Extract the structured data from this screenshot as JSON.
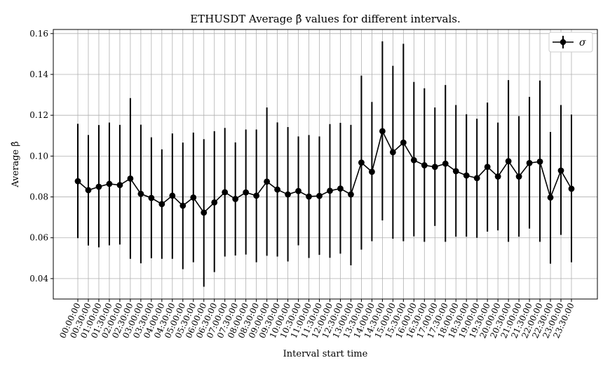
{
  "chart_data": {
    "type": "line",
    "title": "ETHUSDT Average β̂ values for different intervals.",
    "xlabel": "Interval start time",
    "ylabel": "Average β̂",
    "ylim": [
      0.03,
      0.162
    ],
    "yticks": [
      "0.04",
      "0.06",
      "0.08",
      "0.10",
      "0.12",
      "0.14",
      "0.16"
    ],
    "grid": true,
    "legend": {
      "placement": "top-right",
      "entries": [
        "σ"
      ]
    },
    "x": [
      "00:00:00",
      "00:30:00",
      "01:00:00",
      "01:30:00",
      "02:00:00",
      "02:30:00",
      "03:00:00",
      "03:30:00",
      "04:00:00",
      "04:30:00",
      "05:00:00",
      "05:30:00",
      "06:00:00",
      "06:30:00",
      "07:00:00",
      "07:30:00",
      "08:00:00",
      "08:30:00",
      "09:00:00",
      "09:30:00",
      "10:00:00",
      "10:30:00",
      "11:00:00",
      "11:30:00",
      "12:00:00",
      "12:30:00",
      "13:00:00",
      "13:30:00",
      "14:00:00",
      "14:30:00",
      "15:00:00",
      "15:30:00",
      "16:00:00",
      "16:30:00",
      "17:00:00",
      "17:30:00",
      "18:00:00",
      "18:30:00",
      "19:00:00",
      "19:30:00",
      "20:00:00",
      "20:30:00",
      "21:00:00",
      "21:30:00",
      "22:00:00",
      "22:30:00",
      "23:00:00",
      "23:30:00"
    ],
    "series": [
      {
        "name": "σ",
        "color": "#000000",
        "values": [
          0.0877,
          0.0833,
          0.085,
          0.0864,
          0.0858,
          0.089,
          0.0815,
          0.0795,
          0.0765,
          0.0806,
          0.0757,
          0.0797,
          0.0723,
          0.0773,
          0.0823,
          0.079,
          0.0822,
          0.0806,
          0.0875,
          0.0836,
          0.0812,
          0.0829,
          0.0802,
          0.0805,
          0.083,
          0.0841,
          0.0812,
          0.0968,
          0.0923,
          0.1122,
          0.1019,
          0.1066,
          0.098,
          0.0955,
          0.0947,
          0.0963,
          0.0926,
          0.0905,
          0.0892,
          0.0947,
          0.09,
          0.0975,
          0.09,
          0.0966,
          0.0973,
          0.0797,
          0.0929,
          0.084
        ],
        "err_low": [
          0.0598,
          0.0562,
          0.0553,
          0.0563,
          0.0567,
          0.0497,
          0.0475,
          0.05,
          0.0497,
          0.0497,
          0.0446,
          0.048,
          0.036,
          0.0432,
          0.0508,
          0.0513,
          0.0518,
          0.048,
          0.0512,
          0.0508,
          0.0484,
          0.0563,
          0.0501,
          0.0516,
          0.0502,
          0.0522,
          0.0465,
          0.0542,
          0.0583,
          0.0685,
          0.0595,
          0.0583,
          0.0607,
          0.058,
          0.0658,
          0.058,
          0.0605,
          0.0605,
          0.06,
          0.063,
          0.0636,
          0.058,
          0.0605,
          0.0645,
          0.058,
          0.0473,
          0.0614,
          0.048
        ],
        "err_high": [
          0.1158,
          0.1103,
          0.1152,
          0.1164,
          0.1153,
          0.1284,
          0.1154,
          0.1092,
          0.1033,
          0.1111,
          0.1066,
          0.1115,
          0.1083,
          0.1122,
          0.1138,
          0.1067,
          0.113,
          0.113,
          0.1238,
          0.1165,
          0.1142,
          0.1096,
          0.1103,
          0.1096,
          0.1157,
          0.1163,
          0.1153,
          0.1394,
          0.1265,
          0.1562,
          0.1442,
          0.155,
          0.1363,
          0.1332,
          0.1238,
          0.1348,
          0.125,
          0.1205,
          0.1183,
          0.1262,
          0.1164,
          0.1372,
          0.1196,
          0.129,
          0.137,
          0.1118,
          0.125,
          0.1203
        ]
      }
    ]
  }
}
